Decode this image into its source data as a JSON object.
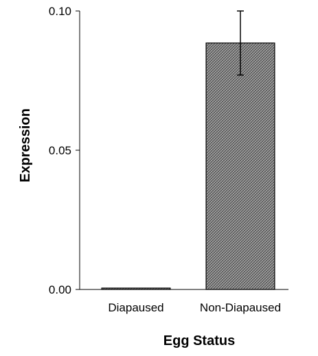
{
  "chart_data": {
    "type": "bar",
    "categories": [
      "Diapaused",
      "Non-Diapaused"
    ],
    "values": [
      0.0005,
      0.0885
    ],
    "error_upper": [
      0.0,
      0.0115
    ],
    "error_lower": [
      0.0,
      0.0115
    ],
    "title": "",
    "xlabel": "Egg Status",
    "ylabel": "Expression",
    "ylim": [
      0,
      0.1
    ],
    "yticks": [
      "0.00",
      "0.05",
      "0.10"
    ],
    "ytick_values": [
      0,
      0.05,
      0.1
    ],
    "grid": false,
    "bar_fill": "crosshatch",
    "colors": {
      "bar_base": "#9a9a9a",
      "bar_line": "#3a3a3a",
      "axis": "#000000"
    }
  }
}
